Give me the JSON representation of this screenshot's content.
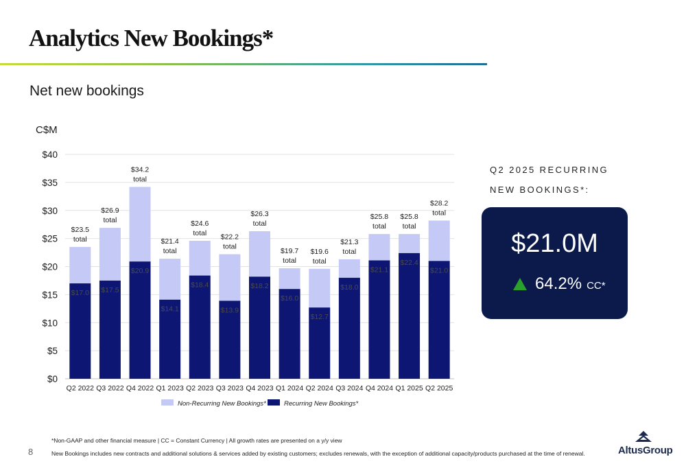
{
  "slide": {
    "title": "Analytics New Bookings*",
    "subtitle": "Net new bookings",
    "page_number": "8",
    "footnote_1": "*Non-GAAP and other financial measure | CC = Constant Currency  |  All growth rates are presented on a y/y view",
    "footnote_2": "New Bookings includes new contracts and additional solutions & services added by existing customers; excludes renewals, with the exception of additional capacity/products purchased at the time of renewal.",
    "logo_text": "AltusGroup"
  },
  "stat": {
    "heading_line1": "Q2 2025 RECURRING",
    "heading_line2": "NEW BOOKINGS*:",
    "value": "$21.0M",
    "growth": "64.2%",
    "growth_suffix": "CC*"
  },
  "colors": {
    "recurring": "#0d1773",
    "non_recurring": "#c4caf5",
    "stat_box": "#0b1a4a",
    "growth_up": "#2ca02c"
  },
  "chart_data": {
    "type": "bar",
    "stacked": true,
    "ylabel": "C$M",
    "ylim": [
      0,
      40
    ],
    "yticks": [
      0,
      5,
      10,
      15,
      20,
      25,
      30,
      35,
      40
    ],
    "ytick_labels": [
      "$0",
      "$5",
      "$10",
      "$15",
      "$20",
      "$25",
      "$30",
      "$35",
      "$40"
    ],
    "grid": true,
    "legend": "bottom",
    "categories": [
      "Q2 2022",
      "Q3 2022",
      "Q4 2022",
      "Q1 2023",
      "Q2 2023",
      "Q3 2023",
      "Q4 2023",
      "Q1 2024",
      "Q2 2024",
      "Q3 2024",
      "Q4 2024",
      "Q1 2025",
      "Q2 2025"
    ],
    "series": [
      {
        "name": "Recurring New Bookings*",
        "values": [
          17.0,
          17.5,
          20.9,
          14.1,
          18.4,
          13.9,
          18.2,
          16.0,
          12.7,
          18.0,
          21.1,
          22.4,
          21.0
        ],
        "labels": [
          "$17.0",
          "$17.5",
          "$20.9",
          "$14.1",
          "$18.4",
          "$13.9",
          "$18.2",
          "$16.0",
          "$12.7",
          "$18.0",
          "$21.1",
          "$22.4",
          "$21.0"
        ]
      },
      {
        "name": "Non-Recurring New Bookings*",
        "values": [
          6.5,
          9.4,
          13.3,
          7.3,
          6.2,
          8.3,
          8.1,
          3.7,
          6.9,
          3.3,
          4.7,
          3.4,
          7.2
        ]
      }
    ],
    "totals": [
      23.5,
      26.9,
      34.2,
      21.4,
      24.6,
      22.2,
      26.3,
      19.7,
      19.6,
      21.3,
      25.8,
      25.8,
      28.2
    ],
    "total_labels": [
      "$23.5",
      "$26.9",
      "$34.2",
      "$21.4",
      "$24.6",
      "$22.2",
      "$26.3",
      "$19.7",
      "$19.6",
      "$21.3",
      "$25.8",
      "$25.8",
      "$28.2"
    ],
    "total_suffix": "total",
    "legend_order": [
      "Non-Recurring New Bookings*",
      "Recurring New Bookings*"
    ]
  }
}
